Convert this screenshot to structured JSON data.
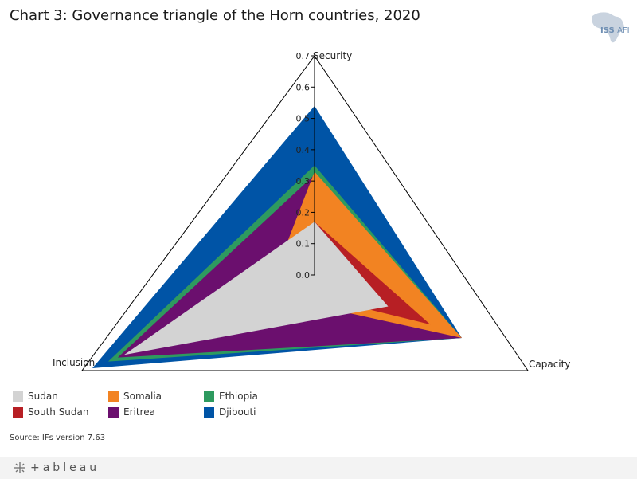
{
  "header": {
    "title": "Chart 3: Governance triangle of the Horn countries, 2020",
    "logo_main": "ISS",
    "logo_sub": "AFI"
  },
  "footer": {
    "source": "Source: IFs version 7.63",
    "brand": "+ableau"
  },
  "chart_data": {
    "type": "radar",
    "axes": [
      "Security",
      "Capacity",
      "Inclusion"
    ],
    "range": [
      0,
      0.7
    ],
    "ticks": [
      0.0,
      0.1,
      0.2,
      0.3,
      0.4,
      0.5,
      0.6,
      0.7
    ],
    "series": [
      {
        "name": "Djibouti",
        "color": "#0054a6",
        "values": [
          0.54,
          0.7,
          0.7
        ]
      },
      {
        "name": "Ethiopia",
        "color": "#2e9a5f",
        "values": [
          0.35,
          0.7,
          0.65
        ]
      },
      {
        "name": "Eritrea",
        "color": "#6b0f6e",
        "values": [
          0.32,
          0.7,
          0.62
        ]
      },
      {
        "name": "Somalia",
        "color": "#f28322",
        "values": [
          0.33,
          0.7,
          0.15
        ]
      },
      {
        "name": "South Sudan",
        "color": "#b71f24",
        "values": [
          0.17,
          0.55,
          0.1
        ]
      },
      {
        "name": "Sudan",
        "color": "#d3d3d3",
        "values": [
          0.17,
          0.35,
          0.6
        ]
      }
    ],
    "legend": [
      {
        "name": "Sudan",
        "color": "#d3d3d3"
      },
      {
        "name": "Somalia",
        "color": "#f28322"
      },
      {
        "name": "Ethiopia",
        "color": "#2e9a5f"
      },
      {
        "name": "South Sudan",
        "color": "#b71f24"
      },
      {
        "name": "Eritrea",
        "color": "#6b0f6e"
      },
      {
        "name": "Djibouti",
        "color": "#0054a6"
      }
    ]
  }
}
